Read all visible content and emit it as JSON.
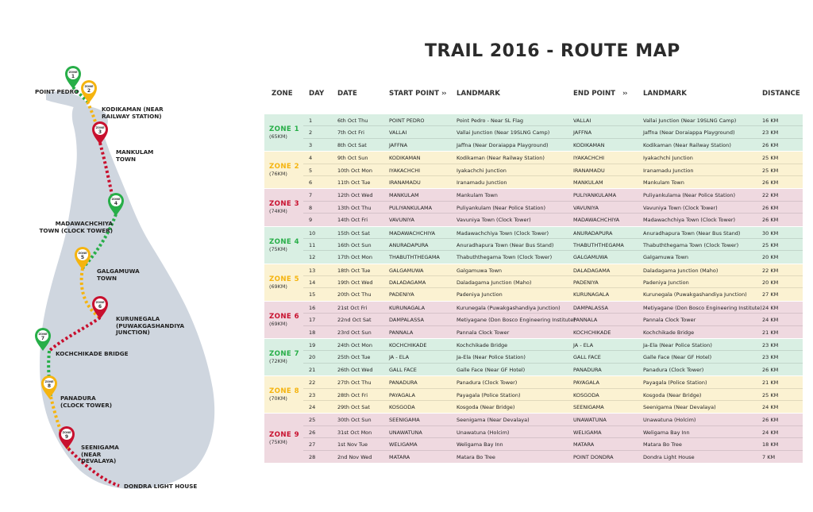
{
  "title": "TRAIL 2016 - ROUTE MAP",
  "headers": {
    "zone": "ZONE",
    "day": "DAY",
    "date": "DATE",
    "start": "START POINT",
    "landmark1": "LANDMARK",
    "end": "END POINT",
    "landmark2": "LANDMARK",
    "distance": "DISTANCE",
    "chev": "››"
  },
  "colors": {
    "green": "#27ae48",
    "yellow": "#f5b40f",
    "red": "#c8102e",
    "bg_green": "#d9efe3",
    "bg_yellow": "#fbf2d2",
    "bg_red": "#efd9e0"
  },
  "map": {
    "labels": {
      "point_pedro": "POINT PEDRO",
      "kodikaman": "KODIKAMAN (NEAR RAILWAY STATION)",
      "mankulam": "MANKULAM TOWN",
      "madawachchiya": "MADAWACHCHIYA TOWN (CLOCK TOWER)",
      "galgamuwa": "GALGAMUWA TOWN",
      "kurunegala": "KURUNEGALA (PUWAKGASHANDIYA JUNCTION)",
      "kochchikade": "KOCHCHIKADE BRIDGE",
      "panadura": "PANADURA (CLOCK TOWER)",
      "seenigama": "SEENIGAMA (NEAR DEVALAYA)",
      "dondra": "DONDRA LIGHT HOUSE"
    },
    "pins": [
      {
        "word": "ZONE",
        "num": "1",
        "color": "green"
      },
      {
        "word": "ZONE",
        "num": "2",
        "color": "yellow"
      },
      {
        "word": "ZONE",
        "num": "3",
        "color": "red"
      },
      {
        "word": "ZONE",
        "num": "4",
        "color": "green"
      },
      {
        "word": "ZONE",
        "num": "5",
        "color": "yellow"
      },
      {
        "word": "ZONE",
        "num": "6",
        "color": "red"
      },
      {
        "word": "ZONE",
        "num": "7",
        "color": "green"
      },
      {
        "word": "ZONE",
        "num": "8",
        "color": "yellow"
      },
      {
        "word": "ZONE",
        "num": "9",
        "color": "red"
      }
    ]
  },
  "zones": [
    {
      "name": "ZONE 1",
      "km": "(65KM)",
      "color": "green",
      "rows": [
        {
          "day": "1",
          "date": "6th Oct Thu",
          "start": "POINT PEDRO",
          "lm1": "Point Pedro - Near SL Flag",
          "end": "VALLAI",
          "lm2": "Vallai Junction (Near 19SLNG Camp)",
          "dist": "16 KM"
        },
        {
          "day": "2",
          "date": "7th Oct Fri",
          "start": "VALLAI",
          "lm1": "Vallai Junction (Near 19SLNG Camp)",
          "end": "JAFFNA",
          "lm2": "Jaffna (Near Doraiappa Playground)",
          "dist": "23 KM"
        },
        {
          "day": "3",
          "date": "8th Oct Sat",
          "start": "JAFFNA",
          "lm1": "Jaffna (Near Doraiappa Playground)",
          "end": "KODIKAMAN",
          "lm2": "Kodikaman (Near Railway Station)",
          "dist": "26 KM"
        }
      ]
    },
    {
      "name": "ZONE 2",
      "km": "(76KM)",
      "color": "yellow",
      "rows": [
        {
          "day": "4",
          "date": "9th Oct Sun",
          "start": "KODIKAMAN",
          "lm1": "Kodikaman (Near Railway Station)",
          "end": "IYAKACHCHI",
          "lm2": "Iyakachchi Junction",
          "dist": "25 KM"
        },
        {
          "day": "5",
          "date": "10th Oct Mon",
          "start": "IYAKACHCHI",
          "lm1": "Iyakachchi Junction",
          "end": "IRANAMADU",
          "lm2": "Iranamadu Junction",
          "dist": "25 KM"
        },
        {
          "day": "6",
          "date": "11th Oct Tue",
          "start": "IRANAMADU",
          "lm1": "Iranamadu Junction",
          "end": "MANKULAM",
          "lm2": "Mankulam Town",
          "dist": "26 KM"
        }
      ]
    },
    {
      "name": "ZONE 3",
      "km": "(74KM)",
      "color": "red",
      "rows": [
        {
          "day": "7",
          "date": "12th Oct Wed",
          "start": "MANKULAM",
          "lm1": "Mankulam Town",
          "end": "PULIYANKULAMA",
          "lm2": "Puliyankulama (Near Police Station)",
          "dist": "22 KM"
        },
        {
          "day": "8",
          "date": "13th Oct Thu",
          "start": "PULIYANKULAMA",
          "lm1": "Puliyankulam (Near Police Station)",
          "end": "VAVUNIYA",
          "lm2": "Vavuniya Town (Clock Tower)",
          "dist": "26 KM"
        },
        {
          "day": "9",
          "date": "14th Oct Fri",
          "start": "VAVUNIYA",
          "lm1": "Vavuniya Town (Clock Tower)",
          "end": "MADAWACHCHIYA",
          "lm2": "Madawachchiya Town (Clock Tower)",
          "dist": "26 KM"
        }
      ]
    },
    {
      "name": "ZONE 4",
      "km": "(75KM)",
      "color": "green",
      "rows": [
        {
          "day": "10",
          "date": "15th Oct Sat",
          "start": "MADAWACHCHIYA",
          "lm1": "Madawachchiya Town (Clock Tower)",
          "end": "ANURADAPURA",
          "lm2": "Anuradhapura Town (Near Bus Stand)",
          "dist": "30 KM"
        },
        {
          "day": "11",
          "date": "16th Oct Sun",
          "start": "ANURADAPURA",
          "lm1": "Anuradhapura Town (Near Bus Stand)",
          "end": "THABUTHTHEGAMA",
          "lm2": "Thabuththegama Town (Clock Tower)",
          "dist": "25 KM"
        },
        {
          "day": "12",
          "date": "17th Oct Mon",
          "start": "THABUTHTHEGAMA",
          "lm1": "Thabuththegama Town (Clock Tower)",
          "end": "GALGAMUWA",
          "lm2": "Galgamuwa Town",
          "dist": "20 KM"
        }
      ]
    },
    {
      "name": "ZONE 5",
      "km": "(69KM)",
      "color": "yellow",
      "rows": [
        {
          "day": "13",
          "date": "18th Oct Tue",
          "start": "GALGAMUWA",
          "lm1": "Galgamuwa Town",
          "end": "DALADAGAMA",
          "lm2": "Daladagama Junction (Maho)",
          "dist": "22 KM"
        },
        {
          "day": "14",
          "date": "19th Oct Wed",
          "start": "DALADAGAMA",
          "lm1": "Daladagama Junction (Maho)",
          "end": "PADENIYA",
          "lm2": "Padeniya Junction",
          "dist": "20 KM"
        },
        {
          "day": "15",
          "date": "20th Oct Thu",
          "start": "PADENIYA",
          "lm1": "Padeniya Junction",
          "end": "KURUNAGALA",
          "lm2": "Kurunegala (Puwakgashandiya Junction)",
          "dist": "27 KM"
        }
      ]
    },
    {
      "name": "ZONE 6",
      "km": "(69KM)",
      "color": "red",
      "rows": [
        {
          "day": "16",
          "date": "21st Oct Fri",
          "start": "KURUNAGALA",
          "lm1": "Kurunegala (Puwakgashandiya Junction)",
          "end": "DAMPALASSA",
          "lm2": "Metiyagane (Don Bosco Engineering Institute)",
          "dist": "24 KM"
        },
        {
          "day": "17",
          "date": "22nd Oct Sat",
          "start": "DAMPALASSA",
          "lm1": "Metiyagane (Don Bosco Engineering Institute)",
          "end": "PANNALA",
          "lm2": "Pannala Clock Tower",
          "dist": "24 KM"
        },
        {
          "day": "18",
          "date": "23rd Oct Sun",
          "start": "PANNALA",
          "lm1": "Pannala Clock Tower",
          "end": "KOCHCHIKADE",
          "lm2": "Kochchikade Bridge",
          "dist": "21 KM"
        }
      ]
    },
    {
      "name": "ZONE 7",
      "km": "(72KM)",
      "color": "green",
      "rows": [
        {
          "day": "19",
          "date": "24th Oct Mon",
          "start": "KOCHCHIKADE",
          "lm1": "Kochchikade Bridge",
          "end": "JA - ELA",
          "lm2": "Ja-Ela (Near Police Station)",
          "dist": "23 KM"
        },
        {
          "day": "20",
          "date": "25th Oct Tue",
          "start": "JA - ELA",
          "lm1": "Ja-Ela (Near Police Station)",
          "end": "GALL FACE",
          "lm2": "Galle Face (Near GF Hotel)",
          "dist": "23 KM"
        },
        {
          "day": "21",
          "date": "26th Oct Wed",
          "start": "GALL FACE",
          "lm1": "Galle Face (Near GF Hotel)",
          "end": "PANADURA",
          "lm2": "Panadura (Clock Tower)",
          "dist": "26 KM"
        }
      ]
    },
    {
      "name": "ZONE 8",
      "km": "(70KM)",
      "color": "yellow",
      "rows": [
        {
          "day": "22",
          "date": "27th Oct Thu",
          "start": "PANADURA",
          "lm1": "Panadura (Clock Tower)",
          "end": "PAYAGALA",
          "lm2": "Payagala (Police Station)",
          "dist": "21 KM"
        },
        {
          "day": "23",
          "date": "28th Oct Fri",
          "start": "PAYAGALA",
          "lm1": "Payagala (Police Station)",
          "end": "KOSGODA",
          "lm2": "Kosgoda (Near Bridge)",
          "dist": "25 KM"
        },
        {
          "day": "24",
          "date": "29th Oct Sat",
          "start": "KOSGODA",
          "lm1": "Kosgoda (Near Bridge)",
          "end": "SEENIGAMA",
          "lm2": "Seenigama (Near Devalaya)",
          "dist": "24 KM"
        }
      ]
    },
    {
      "name": "ZONE 9",
      "km": "(75KM)",
      "color": "red",
      "rows": [
        {
          "day": "25",
          "date": "30th Oct Sun",
          "start": "SEENIGAMA",
          "lm1": "Seenigama (Near Devalaya)",
          "end": "UNAWATUNA",
          "lm2": "Unawatuna (Holcim)",
          "dist": "26 KM"
        },
        {
          "day": "26",
          "date": "31st Oct Mon",
          "start": "UNAWATUNA",
          "lm1": "Unawatuna (Holcim)",
          "end": "WELIGAMA",
          "lm2": "Weligama Bay Inn",
          "dist": "24 KM"
        },
        {
          "day": "27",
          "date": "1st Nov Tue",
          "start": "WELIGAMA",
          "lm1": "Weligama Bay Inn",
          "end": "MATARA",
          "lm2": "Matara Bo Tree",
          "dist": "18 KM"
        },
        {
          "day": "28",
          "date": "2nd Nov Wed",
          "start": "MATARA",
          "lm1": "Matara Bo Tree",
          "end": "POINT DONDRA",
          "lm2": "Dondra Light House",
          "dist": "7 KM"
        }
      ]
    }
  ]
}
